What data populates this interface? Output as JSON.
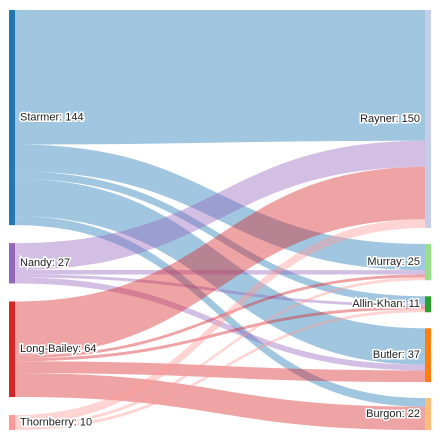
{
  "chart_data": {
    "type": "sankey",
    "sources": [
      {
        "id": "starmer",
        "name": "Starmer",
        "value": 144,
        "color": "#1f77b4"
      },
      {
        "id": "nandy",
        "name": "Nandy",
        "value": 27,
        "color": "#9467bd"
      },
      {
        "id": "long_bailey",
        "name": "Long-Bailey",
        "value": 64,
        "color": "#d62728"
      },
      {
        "id": "thornberry",
        "name": "Thornberry",
        "value": 10,
        "color": "#ff9896"
      }
    ],
    "targets": [
      {
        "id": "rayner",
        "name": "Rayner",
        "value": 150,
        "color": "#c5cde9"
      },
      {
        "id": "murray",
        "name": "Murray",
        "value": 25,
        "color": "#98df8a"
      },
      {
        "id": "allin_khan",
        "name": "Allin-Khan",
        "value": 11,
        "color": "#2ca02c"
      },
      {
        "id": "butler",
        "name": "Butler",
        "value": 37,
        "color": "#ff7f0e"
      },
      {
        "id": "burgon",
        "name": "Burgon",
        "value": 22,
        "color": "#ffbb78"
      }
    ],
    "links": [
      {
        "source": "starmer",
        "target": "rayner",
        "value": 90
      },
      {
        "source": "starmer",
        "target": "murray",
        "value": 18
      },
      {
        "source": "starmer",
        "target": "allin_khan",
        "value": 5
      },
      {
        "source": "starmer",
        "target": "butler",
        "value": 25
      },
      {
        "source": "starmer",
        "target": "burgon",
        "value": 6
      },
      {
        "source": "nandy",
        "target": "rayner",
        "value": 18
      },
      {
        "source": "nandy",
        "target": "murray",
        "value": 3
      },
      {
        "source": "nandy",
        "target": "allin_khan",
        "value": 2
      },
      {
        "source": "nandy",
        "target": "butler",
        "value": 4
      },
      {
        "source": "long_bailey",
        "target": "rayner",
        "value": 36
      },
      {
        "source": "long_bailey",
        "target": "murray",
        "value": 2
      },
      {
        "source": "long_bailey",
        "target": "allin_khan",
        "value": 2
      },
      {
        "source": "long_bailey",
        "target": "butler",
        "value": 8
      },
      {
        "source": "long_bailey",
        "target": "burgon",
        "value": 16
      },
      {
        "source": "thornberry",
        "target": "rayner",
        "value": 6
      },
      {
        "source": "thornberry",
        "target": "murray",
        "value": 2
      },
      {
        "source": "thornberry",
        "target": "allin_khan",
        "value": 2
      }
    ]
  }
}
